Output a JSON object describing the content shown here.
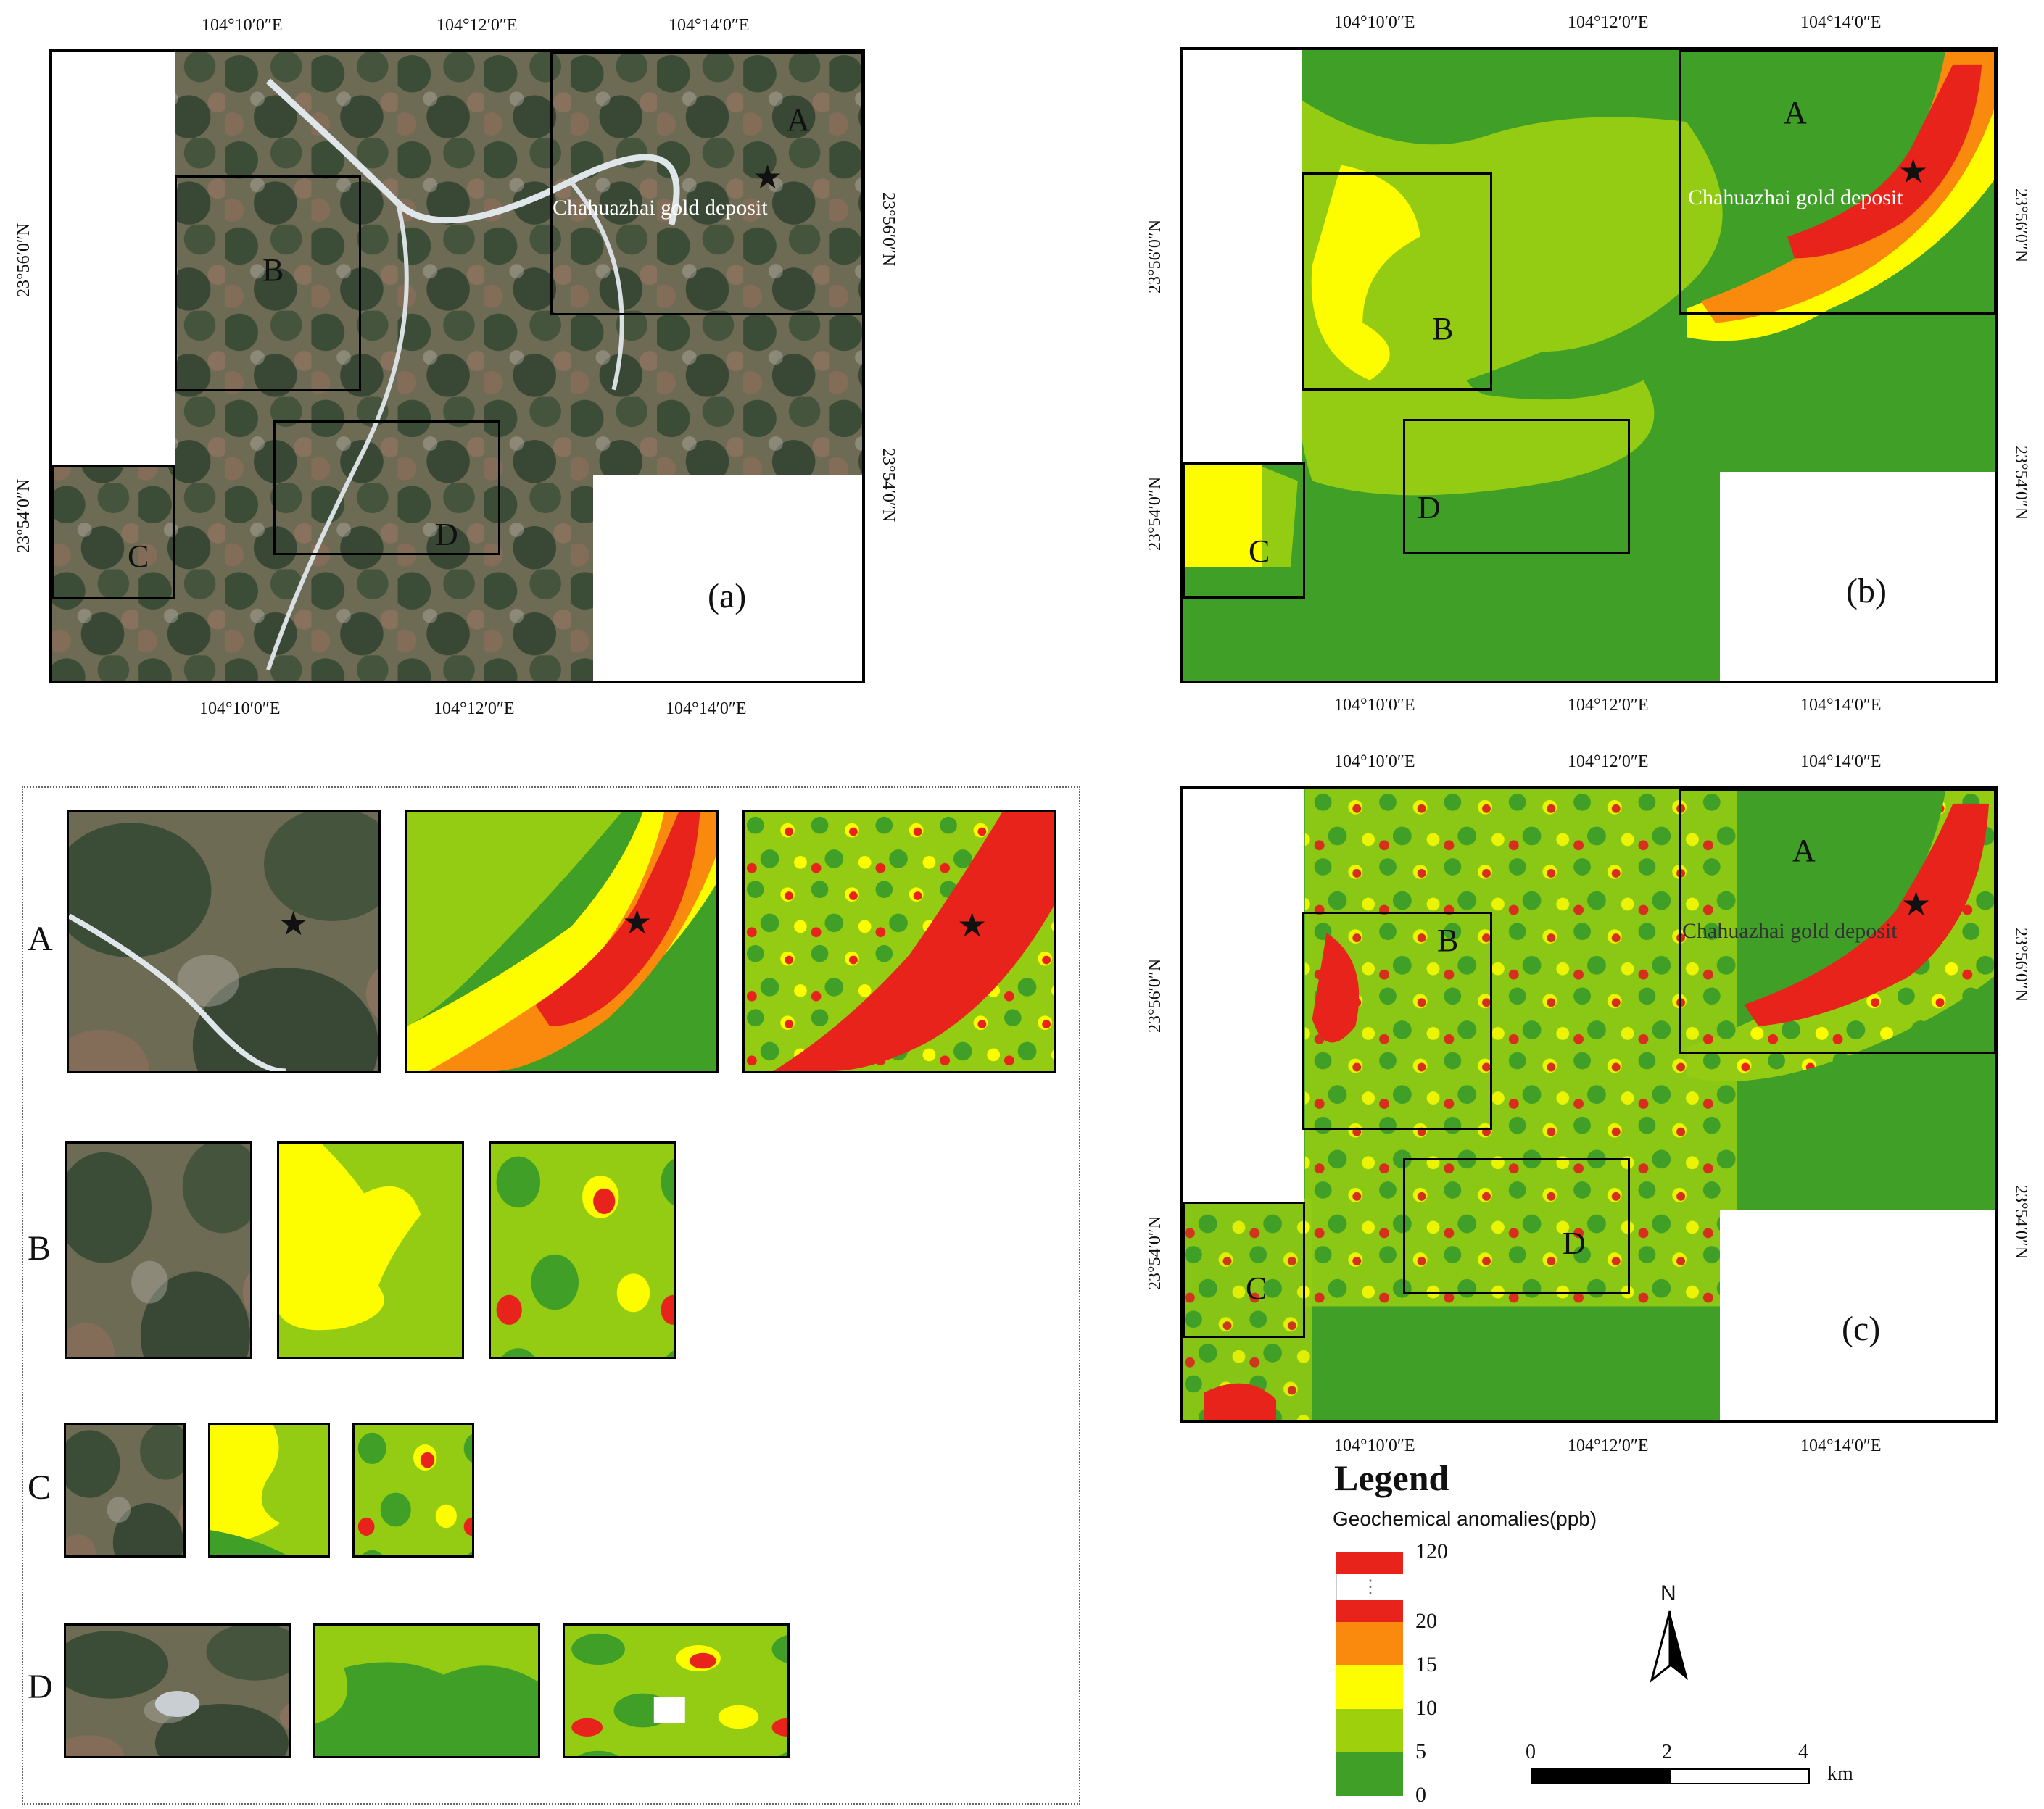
{
  "panels": {
    "a": {
      "label": "(a)",
      "type": "satellite image"
    },
    "b": {
      "label": "(b)",
      "type": "interpolated anomaly"
    },
    "c": {
      "label": "(c)",
      "type": "predicted anomaly"
    }
  },
  "insets": [
    "A",
    "B",
    "C",
    "D"
  ],
  "deposit": {
    "name": "Chahuazhai gold deposit",
    "marker": "star"
  },
  "axes": {
    "longitude_ticks": [
      "104°10′0″E",
      "104°12′0″E",
      "104°14′0″E"
    ],
    "latitude_ticks": [
      "23°56′0″N",
      "23°54′0″N"
    ]
  },
  "detail_rows": [
    "A",
    "B",
    "C",
    "D"
  ],
  "legend": {
    "title": "Legend",
    "subtitle": "Geochemical anomalies(ppb)",
    "labels": [
      "120",
      "20",
      "15",
      "10",
      "5",
      "0"
    ],
    "break_mark": "⋮",
    "colors": [
      "#e8231c",
      "#ffffff",
      "#e8231c",
      "#f98a0e",
      "#fdfd00",
      "#9ed00b",
      "#3f9f27"
    ]
  },
  "north_arrow": {
    "label": "N"
  },
  "scale_bar": {
    "ticks": [
      "0",
      "2",
      "4"
    ],
    "unit": "km"
  },
  "colors": {
    "green_dark": "#3f9f27",
    "green_light": "#93cc13",
    "yellow": "#fdfd00",
    "orange": "#f98a0e",
    "red": "#e8231c"
  }
}
